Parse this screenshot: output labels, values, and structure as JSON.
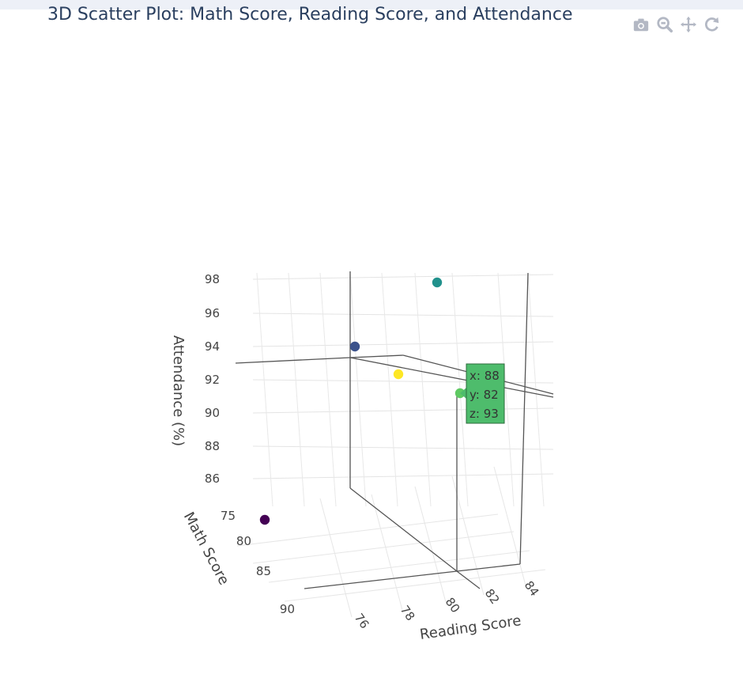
{
  "header": {
    "title": "3D Scatter Plot: Math Score, Reading Score, and Attendance"
  },
  "modebar": {
    "buttons": [
      {
        "name": "camera-icon"
      },
      {
        "name": "zoom-icon"
      },
      {
        "name": "pan-icon"
      },
      {
        "name": "reset-icon"
      }
    ]
  },
  "chart_data": {
    "type": "scatter3d",
    "title": "3D Scatter Plot: Math Score, Reading Score, and Attendance",
    "axes": {
      "x": {
        "title": "Reading Score",
        "ticks": [
          "76",
          "78",
          "80",
          "82",
          "84"
        ]
      },
      "y": {
        "title": "Math Score",
        "ticks": [
          "75",
          "80",
          "85",
          "90"
        ]
      },
      "z": {
        "title": "Attendance (%)",
        "ticks": [
          "86",
          "88",
          "90",
          "92",
          "94",
          "96",
          "98"
        ]
      }
    },
    "points": [
      {
        "x": 75,
        "y": 72,
        "z": 85,
        "color": "#440154"
      },
      {
        "x": 78,
        "y": 85,
        "z": 93,
        "color": "#3b528b"
      },
      {
        "x": 82,
        "y": 90,
        "z": 97,
        "color": "#21918c"
      },
      {
        "x": 88,
        "y": 82,
        "z": 93,
        "color": "#5ec962"
      },
      {
        "x": 85,
        "y": 87,
        "z": 92,
        "color": "#fde725"
      }
    ],
    "hover": {
      "lines": [
        "x: 88",
        "y: 82",
        "z: 93"
      ],
      "color": "#4ebc6c"
    },
    "grid": true
  }
}
